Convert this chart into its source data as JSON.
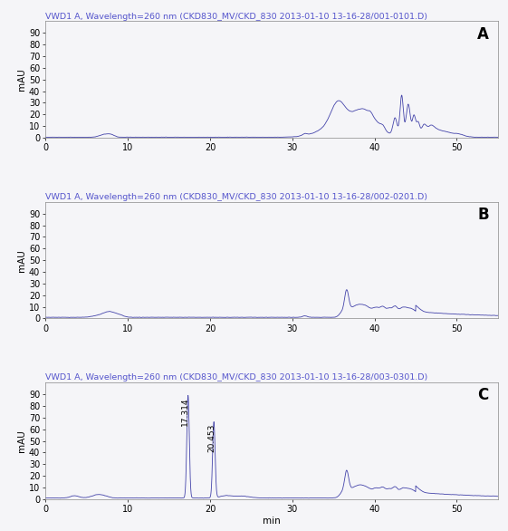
{
  "title_A": "VWD1 A, Wavelength=260 nm (CKD830_MV/CKD_830 2013-01-10 13-16-28/001-0101.D)",
  "title_B": "VWD1 A, Wavelength=260 nm (CKD830_MV/CKD_830 2013-01-10 13-16-28/002-0201.D)",
  "title_C": "VWD1 A, Wavelength=260 nm (CKD830_MV/CKD_830 2013-01-10 13-16-28/003-0301.D)",
  "label_A": "A",
  "label_B": "B",
  "label_C": "C",
  "ylabel": "mAU",
  "xlabel": "min",
  "xlim": [
    0,
    55
  ],
  "ylim": [
    0,
    100
  ],
  "xticks": [
    0,
    10,
    20,
    30,
    40,
    50
  ],
  "yticks": [
    0,
    10,
    20,
    30,
    40,
    50,
    60,
    70,
    80,
    90
  ],
  "line_color": "#4444aa",
  "background_color": "#f5f5f8",
  "title_color": "#5555cc",
  "title_fontsize": 6.8,
  "label_fontsize": 12,
  "axis_fontsize": 7.5,
  "peak_C_1_x": 17.314,
  "peak_C_2_x": 20.453,
  "peak_label_fontsize": 6.5
}
